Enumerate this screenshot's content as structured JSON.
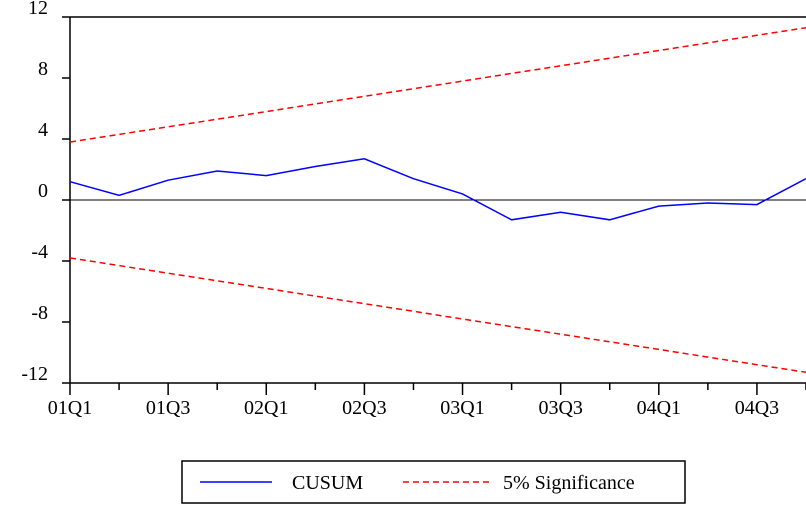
{
  "chart_data": {
    "type": "line",
    "categories": [
      "01Q1",
      "01Q2",
      "01Q3",
      "01Q4",
      "02Q1",
      "02Q2",
      "02Q3",
      "02Q4",
      "03Q1",
      "03Q2",
      "03Q3",
      "03Q4",
      "04Q1",
      "04Q2",
      "04Q3",
      "04Q4"
    ],
    "x_tick_labels": [
      "01Q1",
      "01Q3",
      "02Q1",
      "02Q3",
      "03Q1",
      "03Q3",
      "04Q1",
      "04Q3"
    ],
    "y_ticks": [
      12,
      8,
      4,
      0,
      -4,
      -8,
      -12
    ],
    "y_tick_labels": [
      "12",
      "8",
      "4",
      "0",
      "-4",
      "-8",
      "-12"
    ],
    "ylim": [
      -12,
      12
    ],
    "title": "",
    "xlabel": "",
    "ylabel": "",
    "grid": false,
    "legend_position": "bottom",
    "series": [
      {
        "name": "CUSUM",
        "color": "#0000ff",
        "style": "solid",
        "values": [
          1.2,
          0.3,
          1.3,
          1.9,
          1.6,
          2.2,
          2.7,
          1.4,
          0.4,
          -1.3,
          -0.8,
          -1.3,
          -0.4,
          -0.2,
          -0.3,
          1.4
        ]
      },
      {
        "name": "5% Significance",
        "color": "#ff0000",
        "style": "dashed",
        "bounds": "upper",
        "values": [
          3.8,
          4.3,
          4.8,
          5.3,
          5.8,
          6.3,
          6.8,
          7.3,
          7.8,
          8.3,
          8.8,
          9.3,
          9.8,
          10.3,
          10.8,
          11.3
        ]
      },
      {
        "name": "5% Significance",
        "color": "#ff0000",
        "style": "dashed",
        "bounds": "lower",
        "values": [
          -3.8,
          -4.3,
          -4.8,
          -5.3,
          -5.8,
          -6.3,
          -6.8,
          -7.3,
          -7.8,
          -8.3,
          -8.8,
          -9.3,
          -9.8,
          -10.3,
          -10.8,
          -11.3
        ]
      }
    ],
    "zero_line": 0
  },
  "legend": {
    "items": [
      {
        "label": "CUSUM",
        "color": "#0000ff",
        "style": "solid"
      },
      {
        "label": "5% Significance",
        "color": "#ff0000",
        "style": "dashed"
      }
    ]
  }
}
